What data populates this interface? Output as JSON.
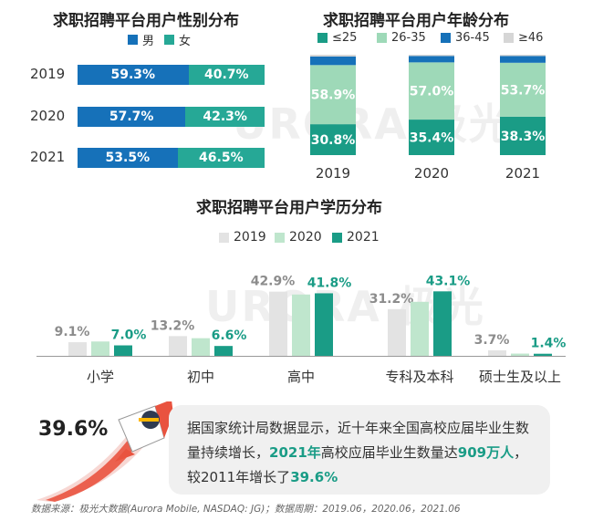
{
  "chart_data": [
    {
      "type": "bar",
      "orientation": "horizontal",
      "stacked": true,
      "title": "求职招聘平台用户性别分布",
      "categories": [
        "2019",
        "2020",
        "2021"
      ],
      "series": [
        {
          "name": "男",
          "values": [
            59.3,
            57.7,
            53.5
          ],
          "labels": [
            "59.3%",
            "57.7%",
            "53.5%"
          ]
        },
        {
          "name": "女",
          "values": [
            40.7,
            42.3,
            46.5
          ],
          "labels": [
            "40.7%",
            "42.3%",
            "46.5%"
          ]
        }
      ],
      "xlim": [
        0,
        100
      ],
      "legend_position": "top",
      "grid": false
    },
    {
      "type": "bar",
      "stacked": true,
      "title": "求职招聘平台用户年龄分布",
      "categories": [
        "2019",
        "2020",
        "2021"
      ],
      "series": [
        {
          "name": "≤25",
          "values": [
            30.8,
            35.4,
            38.3
          ],
          "labels": [
            "30.8%",
            "35.4%",
            "38.3%"
          ]
        },
        {
          "name": "26-35",
          "values": [
            58.9,
            57.0,
            53.7
          ],
          "labels": [
            "58.9%",
            "57.0%",
            "53.7%"
          ]
        },
        {
          "name": "36-45",
          "values": [
            8.5,
            6.4,
            6.8
          ]
        },
        {
          "name": "≥46",
          "values": [
            1.8,
            1.2,
            1.2
          ]
        }
      ],
      "ylim": [
        0,
        100
      ],
      "legend_position": "top",
      "grid": false
    },
    {
      "type": "bar",
      "title": "求职招聘平台用户学历分布",
      "categories": [
        "小学",
        "初中",
        "高中",
        "专科及本科",
        "硕士生及以上"
      ],
      "series": [
        {
          "name": "2019",
          "values": [
            9.1,
            13.2,
            42.9,
            31.2,
            3.7
          ],
          "labels": [
            "9.1%",
            "13.2%",
            "42.9%",
            "31.2%",
            "3.7%"
          ]
        },
        {
          "name": "2020",
          "values": [
            9.6,
            11.8,
            41.0,
            36.1,
            1.5
          ]
        },
        {
          "name": "2021",
          "values": [
            7.0,
            6.6,
            41.8,
            43.1,
            1.4
          ],
          "labels": [
            "7.0%",
            "6.6%",
            "41.8%",
            "43.1%",
            "1.4%"
          ]
        }
      ],
      "ylim": [
        0,
        50
      ],
      "legend_position": "top",
      "grid": false
    }
  ],
  "colors": {
    "male": "#1671b9",
    "female": "#26a896",
    "age_le25": "#1a9c86",
    "age_26_35": "#9ed9b8",
    "age_36_45": "#1671b9",
    "age_ge46": "#d6d6d6",
    "edu_2019": "#e3e3e3",
    "edu_2020": "#bfe6cd",
    "edu_2021": "#1a9c86",
    "label_grey": "#8c8c8c",
    "label_green": "#1a9c86"
  },
  "watermark": "URORA 极光",
  "callout": {
    "big_number": "39.6%",
    "text_part1": "据国家统计局数据显示，近十年来全国高校应届毕业生数量持续增长，",
    "highlight1": "2021年",
    "text_part2": "高校应届毕业生数量达",
    "highlight2": "909万人",
    "text_part3": "，较2011年增长了",
    "highlight3": "39.6%"
  },
  "source": "数据来源：极光大数据(Aurora Mobile, NASDAQ: JG)；数据周期：2019.06，2020.06，2021.06"
}
